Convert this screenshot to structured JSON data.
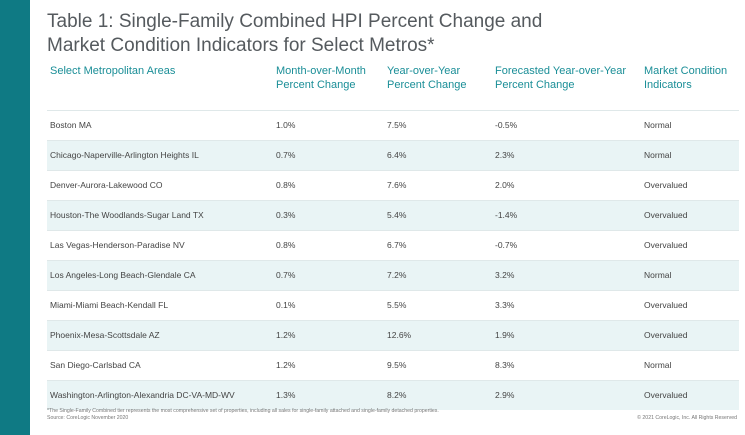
{
  "title": {
    "line1": "Table 1: Single-Family Combined HPI Percent Change and",
    "line2": "Market Condition Indicators for Select Metros*"
  },
  "table": {
    "headers": [
      [
        "Select Metropolitan Areas",
        ""
      ],
      [
        "Month-over-Month",
        "Percent Change"
      ],
      [
        "Year-over-Year",
        "Percent Change"
      ],
      [
        "Forecasted Year-over-Year",
        "Percent Change"
      ],
      [
        "Market Condition",
        "Indicators"
      ]
    ],
    "rows": [
      [
        "Boston MA",
        "1.0%",
        "7.5%",
        "-0.5%",
        "Normal"
      ],
      [
        "Chicago-Naperville-Arlington Heights IL",
        "0.7%",
        "6.4%",
        "2.3%",
        "Normal"
      ],
      [
        "Denver-Aurora-Lakewood CO",
        "0.8%",
        "7.6%",
        "2.0%",
        "Overvalued"
      ],
      [
        "Houston-The Woodlands-Sugar Land TX",
        "0.3%",
        "5.4%",
        "-1.4%",
        "Overvalued"
      ],
      [
        "Las Vegas-Henderson-Paradise NV",
        "0.8%",
        "6.7%",
        "-0.7%",
        "Overvalued"
      ],
      [
        "Los Angeles-Long Beach-Glendale CA",
        "0.7%",
        "7.2%",
        "3.2%",
        "Normal"
      ],
      [
        "Miami-Miami Beach-Kendall FL",
        "0.1%",
        "5.5%",
        "3.3%",
        "Overvalued"
      ],
      [
        "Phoenix-Mesa-Scottsdale AZ",
        "1.2%",
        "12.6%",
        "1.9%",
        "Overvalued"
      ],
      [
        "San Diego-Carlsbad CA",
        "1.2%",
        "9.5%",
        "8.3%",
        "Normal"
      ],
      [
        "Washington-Arlington-Alexandria DC-VA-MD-WV",
        "1.3%",
        "8.2%",
        "2.9%",
        "Overvalued"
      ]
    ]
  },
  "footnote": {
    "line1": "*The Single-Family Combined tier represents the most comprehensive set of properties, including all sales for single-family attached and single-family detached properties.",
    "line2": "Source: CoreLogic November 2020"
  },
  "copyright": "© 2021 CoreLogic, Inc. All Rights Reserved",
  "colors": {
    "accent": "#0f7a84",
    "header_text": "#1a8e97",
    "alt_row": "#e9f4f5"
  }
}
